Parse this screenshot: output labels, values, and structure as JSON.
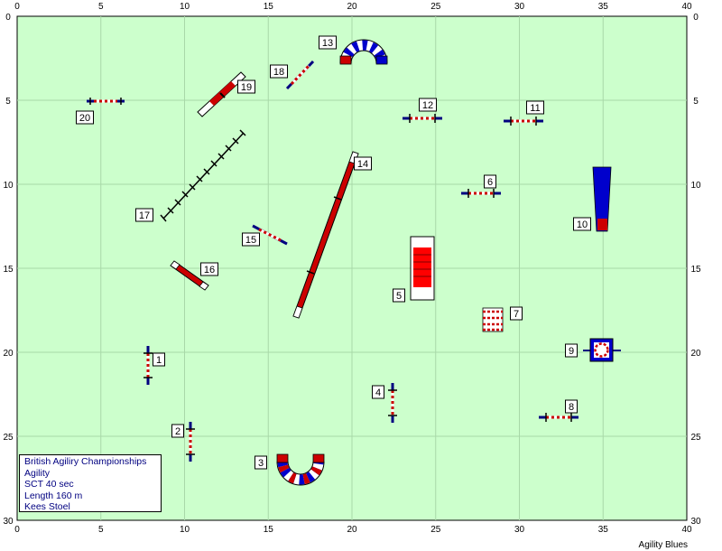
{
  "course": {
    "field_color": "#ccffcc",
    "bar_color": "#cc0000",
    "tunnel_blue": "#0000cc",
    "pole_blue": "#000080",
    "wall_color": "#ff0000",
    "tick_labels_x": [
      "0",
      "5",
      "10",
      "15",
      "20",
      "25",
      "30",
      "35",
      "40"
    ],
    "tick_labels_y": [
      "0",
      "5",
      "10",
      "15",
      "20",
      "25",
      "30"
    ],
    "obstacles": [
      {
        "num": "1",
        "kind": "hurdle"
      },
      {
        "num": "2",
        "kind": "hurdle"
      },
      {
        "num": "3",
        "kind": "tunnel"
      },
      {
        "num": "4",
        "kind": "hurdle"
      },
      {
        "num": "5",
        "kind": "wall"
      },
      {
        "num": "6",
        "kind": "hurdle"
      },
      {
        "num": "7",
        "kind": "spread"
      },
      {
        "num": "8",
        "kind": "hurdle"
      },
      {
        "num": "9",
        "kind": "tire"
      },
      {
        "num": "10",
        "kind": "a-frame"
      },
      {
        "num": "11",
        "kind": "hurdle"
      },
      {
        "num": "12",
        "kind": "hurdle"
      },
      {
        "num": "13",
        "kind": "tunnel"
      },
      {
        "num": "14",
        "kind": "dog-walk"
      },
      {
        "num": "15",
        "kind": "hurdle"
      },
      {
        "num": "16",
        "kind": "see-saw"
      },
      {
        "num": "17",
        "kind": "weave-poles"
      },
      {
        "num": "18",
        "kind": "hurdle"
      },
      {
        "num": "19",
        "kind": "see-saw"
      },
      {
        "num": "20",
        "kind": "hurdle"
      }
    ]
  },
  "info": {
    "line1": "British Agiliry Championships",
    "line2": "Agility",
    "line3": "SCT 40 sec",
    "line4": "Length 160 m",
    "line5": "Kees Stoel"
  },
  "brand": "Agility Blues"
}
